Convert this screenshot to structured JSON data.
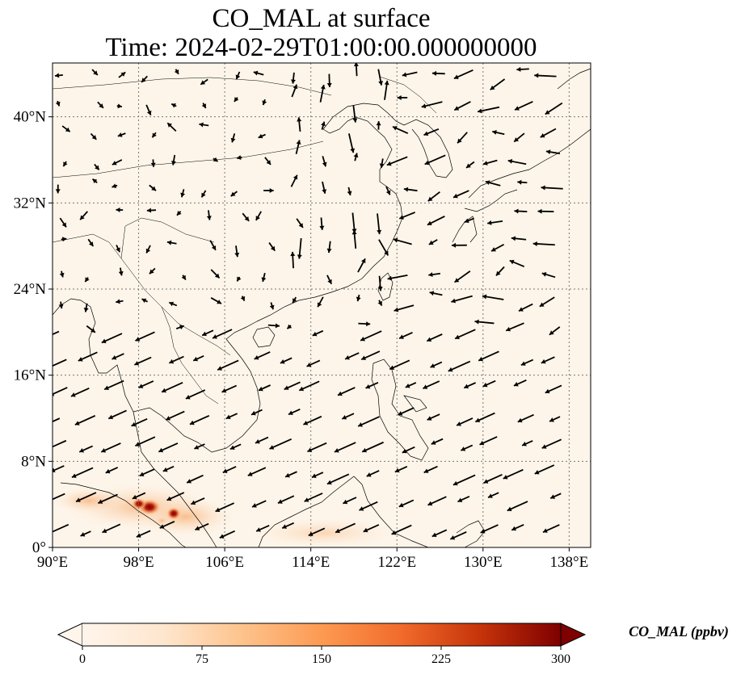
{
  "title": {
    "line1": "CO_MAL at surface",
    "line2": "Time: 2024-02-29T01:00:00.000000000"
  },
  "map": {
    "background_color": "#fdf5e9",
    "x_ticks": [
      {
        "value": 90,
        "label": "90°E"
      },
      {
        "value": 98,
        "label": "98°E"
      },
      {
        "value": 106,
        "label": "106°E"
      },
      {
        "value": 114,
        "label": "114°E"
      },
      {
        "value": 122,
        "label": "122°E"
      },
      {
        "value": 130,
        "label": "130°E"
      },
      {
        "value": 138,
        "label": "138°E"
      }
    ],
    "y_ticks": [
      {
        "value": 0,
        "label": "0°"
      },
      {
        "value": 8,
        "label": "8°N"
      },
      {
        "value": 16,
        "label": "16°N"
      },
      {
        "value": 24,
        "label": "24°N"
      },
      {
        "value": 32,
        "label": "32°N"
      },
      {
        "value": 40,
        "label": "40°N"
      }
    ],
    "lon_range": [
      90,
      140
    ],
    "lat_range": [
      0,
      45
    ],
    "gridlines": true,
    "hotspots": [
      {
        "lon": 98.5,
        "lat": 3.6,
        "value": 220
      },
      {
        "lon": 99.5,
        "lat": 3.4,
        "value": 280
      },
      {
        "lon": 101.3,
        "lat": 3.1,
        "value": 240
      },
      {
        "lon": 100.5,
        "lat": 2.5,
        "value": 90
      },
      {
        "lon": 97.5,
        "lat": 4.2,
        "value": 70
      }
    ]
  },
  "colorbar": {
    "label": "CO_MAL (ppbv)",
    "ticks": [
      {
        "value": 0,
        "label": "0"
      },
      {
        "value": 75,
        "label": "75"
      },
      {
        "value": 150,
        "label": "150"
      },
      {
        "value": 225,
        "label": "225"
      },
      {
        "value": 300,
        "label": "300"
      }
    ],
    "range": [
      0,
      300
    ],
    "colors": [
      "#fff5eb",
      "#fdd9b4",
      "#fda55e",
      "#f4721e",
      "#d4420a",
      "#8b0000",
      "#7f0000"
    ]
  }
}
